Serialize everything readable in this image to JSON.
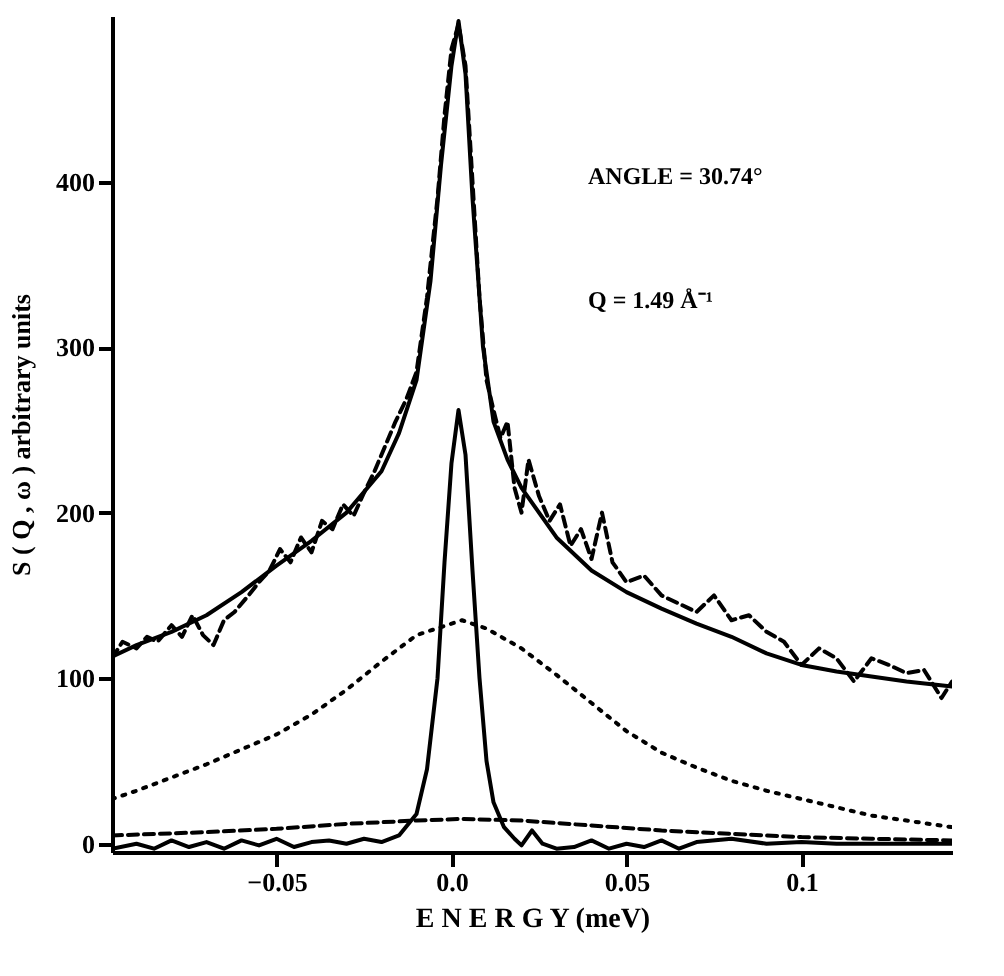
{
  "chart_data": {
    "type": "line",
    "xlabel": "E N E R G Y (meV)",
    "ylabel": "S ( Q , ω ) arbitrary units",
    "annotations": [
      "ANGLE = 30.74°",
      "Q     =  1.49 Å⁻¹"
    ],
    "xlim": [
      -0.097,
      0.143
    ],
    "ylim": [
      -5,
      500
    ],
    "xticks": [
      -0.05,
      {
        "value": 0,
        "label": "0.0"
      },
      0.05,
      {
        "value": 0.1,
        "label": "0.1"
      }
    ],
    "yticks": [
      0,
      100,
      200,
      300,
      400
    ],
    "grid": false,
    "marker": "none",
    "series": [
      {
        "color": "#000000",
        "line_style": "dashed",
        "x": [
          -0.097,
          -0.094,
          -0.09,
          -0.087,
          -0.084,
          -0.08,
          -0.077,
          -0.074,
          -0.071,
          -0.068,
          -0.065,
          -0.062,
          -0.058,
          -0.055,
          -0.052,
          -0.049,
          -0.046,
          -0.043,
          -0.04,
          -0.037,
          -0.034,
          -0.031,
          -0.028,
          -0.025,
          -0.022,
          -0.019,
          -0.016,
          -0.013,
          -0.01,
          -0.007,
          -0.004,
          -0.002,
          0.0,
          0.002,
          0.004,
          0.006,
          0.008,
          0.01,
          0.012,
          0.014,
          0.016,
          0.018,
          0.02,
          0.022,
          0.025,
          0.028,
          0.031,
          0.034,
          0.037,
          0.04,
          0.043,
          0.046,
          0.05,
          0.055,
          0.06,
          0.065,
          0.07,
          0.075,
          0.08,
          0.085,
          0.09,
          0.095,
          0.1,
          0.105,
          0.11,
          0.115,
          0.12,
          0.125,
          0.13,
          0.135,
          0.14,
          0.143
        ],
        "values": [
          112,
          122,
          118,
          125,
          122,
          132,
          125,
          138,
          126,
          120,
          135,
          140,
          150,
          158,
          165,
          178,
          170,
          185,
          176,
          195,
          190,
          205,
          198,
          212,
          225,
          240,
          255,
          268,
          285,
          330,
          390,
          440,
          480,
          495,
          470,
          400,
          330,
          280,
          262,
          245,
          255,
          215,
          200,
          232,
          210,
          195,
          205,
          180,
          190,
          172,
          200,
          170,
          158,
          162,
          150,
          145,
          140,
          150,
          135,
          138,
          128,
          122,
          108,
          118,
          112,
          98,
          112,
          108,
          103,
          105,
          88,
          98
        ]
      },
      {
        "color": "#000000",
        "line_style": "solid",
        "x": [
          -0.097,
          -0.09,
          -0.08,
          -0.07,
          -0.06,
          -0.05,
          -0.04,
          -0.03,
          -0.02,
          -0.015,
          -0.01,
          -0.006,
          -0.003,
          0,
          0.002,
          0.004,
          0.006,
          0.009,
          0.012,
          0.016,
          0.02,
          0.03,
          0.04,
          0.05,
          0.06,
          0.07,
          0.08,
          0.09,
          0.1,
          0.11,
          0.12,
          0.13,
          0.143
        ],
        "values": [
          113,
          120,
          128,
          138,
          152,
          168,
          183,
          200,
          225,
          248,
          280,
          340,
          410,
          470,
          497,
          465,
          390,
          300,
          255,
          232,
          215,
          185,
          165,
          152,
          142,
          133,
          125,
          115,
          108,
          104,
          101,
          98,
          95
        ]
      },
      {
        "color": "#000000",
        "line_style": "dotted",
        "x": [
          -0.097,
          -0.09,
          -0.08,
          -0.07,
          -0.06,
          -0.05,
          -0.04,
          -0.03,
          -0.02,
          -0.01,
          0.003,
          0.01,
          0.02,
          0.03,
          0.04,
          0.05,
          0.06,
          0.07,
          0.08,
          0.09,
          0.1,
          0.11,
          0.12,
          0.13,
          0.143
        ],
        "values": [
          27,
          32,
          40,
          48,
          57,
          66,
          78,
          93,
          110,
          126,
          135,
          130,
          118,
          102,
          85,
          68,
          55,
          46,
          38,
          32,
          27,
          22,
          17,
          14,
          10
        ]
      },
      {
        "color": "#000000",
        "line_style": "dashed",
        "x": [
          -0.097,
          -0.07,
          -0.05,
          -0.03,
          -0.01,
          0.003,
          0.02,
          0.04,
          0.06,
          0.08,
          0.1,
          0.12,
          0.143
        ],
        "values": [
          5,
          7,
          9,
          12,
          14,
          15,
          14,
          11,
          8,
          6,
          4,
          3,
          2
        ]
      },
      {
        "color": "#000000",
        "line_style": "solid",
        "x": [
          -0.097,
          -0.09,
          -0.085,
          -0.08,
          -0.075,
          -0.07,
          -0.065,
          -0.06,
          -0.055,
          -0.05,
          -0.045,
          -0.04,
          -0.035,
          -0.03,
          -0.025,
          -0.02,
          -0.015,
          -0.01,
          -0.007,
          -0.004,
          -0.002,
          0,
          0.002,
          0.004,
          0.006,
          0.008,
          0.01,
          0.012,
          0.015,
          0.018,
          0.02,
          0.023,
          0.026,
          0.03,
          0.035,
          0.04,
          0.045,
          0.05,
          0.055,
          0.06,
          0.065,
          0.07,
          0.08,
          0.09,
          0.1,
          0.11,
          0.12,
          0.13,
          0.143
        ],
        "values": [
          -3,
          0,
          -3,
          2,
          -2,
          1,
          -3,
          2,
          -1,
          3,
          -2,
          1,
          2,
          0,
          3,
          1,
          5,
          18,
          45,
          100,
          170,
          230,
          262,
          235,
          165,
          100,
          50,
          25,
          10,
          3,
          -1,
          8,
          0,
          -3,
          -2,
          2,
          -3,
          0,
          -2,
          2,
          -3,
          1,
          3,
          0,
          1,
          0,
          0,
          0,
          0
        ]
      }
    ]
  }
}
